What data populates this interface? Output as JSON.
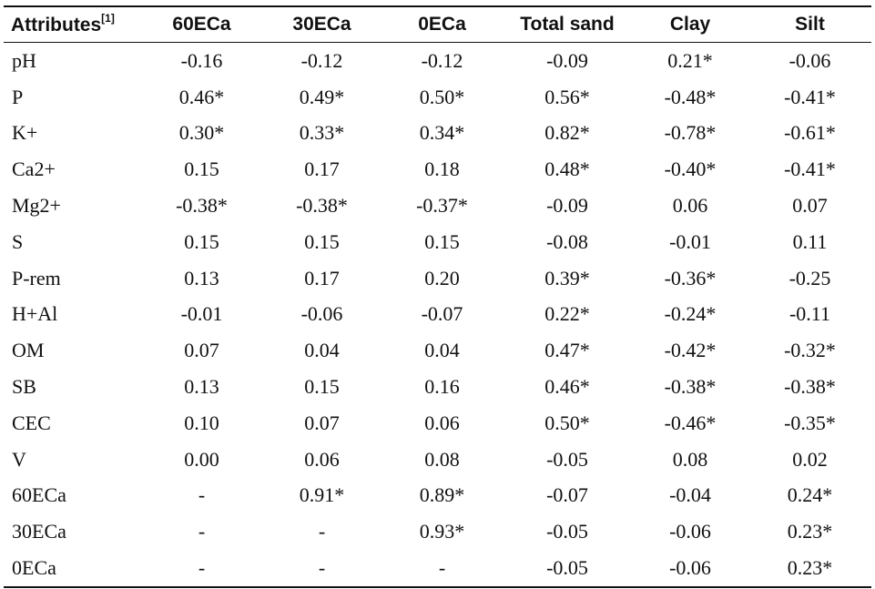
{
  "table": {
    "header": {
      "attributes": "Attributes",
      "attributes_note": "[1]",
      "columns": [
        "60ECa",
        "30ECa",
        "0ECa",
        "Total sand",
        "Clay",
        "Silt"
      ]
    },
    "rows": [
      {
        "label": "pH",
        "values": [
          "-0.16",
          "-0.12",
          "-0.12",
          "-0.09",
          "0.21*",
          "-0.06"
        ]
      },
      {
        "label": "P",
        "values": [
          "0.46*",
          "0.49*",
          "0.50*",
          "0.56*",
          "-0.48*",
          "-0.41*"
        ]
      },
      {
        "label": "K+",
        "values": [
          "0.30*",
          "0.33*",
          "0.34*",
          "0.82*",
          "-0.78*",
          "-0.61*"
        ]
      },
      {
        "label": "Ca2+",
        "values": [
          "0.15",
          "0.17",
          "0.18",
          "0.48*",
          "-0.40*",
          "-0.41*"
        ]
      },
      {
        "label": "Mg2+",
        "values": [
          "-0.38*",
          "-0.38*",
          "-0.37*",
          "-0.09",
          "0.06",
          "0.07"
        ]
      },
      {
        "label": "S",
        "values": [
          "0.15",
          "0.15",
          "0.15",
          "-0.08",
          "-0.01",
          "0.11"
        ]
      },
      {
        "label": "P-rem",
        "values": [
          "0.13",
          "0.17",
          "0.20",
          "0.39*",
          "-0.36*",
          "-0.25"
        ]
      },
      {
        "label": "H+Al",
        "values": [
          "-0.01",
          "-0.06",
          "-0.07",
          "0.22*",
          "-0.24*",
          "-0.11"
        ]
      },
      {
        "label": "OM",
        "values": [
          "0.07",
          "0.04",
          "0.04",
          "0.47*",
          "-0.42*",
          "-0.32*"
        ]
      },
      {
        "label": "SB",
        "values": [
          "0.13",
          "0.15",
          "0.16",
          "0.46*",
          "-0.38*",
          "-0.38*"
        ]
      },
      {
        "label": "CEC",
        "values": [
          "0.10",
          "0.07",
          "0.06",
          "0.50*",
          "-0.46*",
          "-0.35*"
        ]
      },
      {
        "label": "V",
        "values": [
          "0.00",
          "0.06",
          "0.08",
          "-0.05",
          "0.08",
          "0.02"
        ]
      },
      {
        "label": "60ECa",
        "values": [
          "-",
          "0.91*",
          "0.89*",
          "-0.07",
          "-0.04",
          "0.24*"
        ]
      },
      {
        "label": "30ECa",
        "values": [
          "-",
          "-",
          "0.93*",
          "-0.05",
          "-0.06",
          "0.23*"
        ]
      },
      {
        "label": "0ECa",
        "values": [
          "-",
          "-",
          "-",
          "-0.05",
          "-0.06",
          "0.23*"
        ]
      }
    ]
  }
}
